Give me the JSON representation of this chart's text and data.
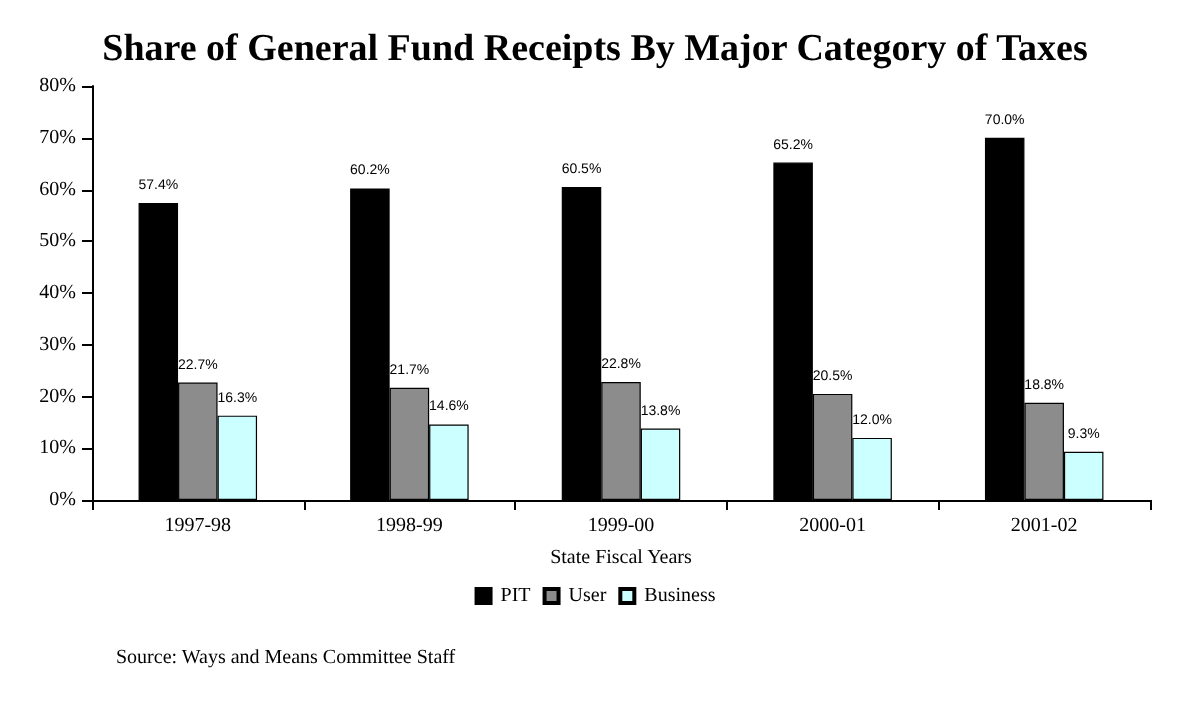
{
  "chart_data": {
    "type": "bar",
    "title": "Share of General Fund Receipts By Major Category of Taxes",
    "xlabel": "State Fiscal Years",
    "categories": [
      "1997-98",
      "1998-99",
      "1999-00",
      "2000-01",
      "2001-02"
    ],
    "series": [
      {
        "name": "PIT",
        "color": "#000000",
        "values": [
          57.4,
          60.2,
          60.5,
          65.2,
          70.0
        ],
        "value_labels": [
          "57.4%",
          "60.2%",
          "60.5%",
          "65.2%",
          "70.0%"
        ]
      },
      {
        "name": "User",
        "color": "#8c8c8c",
        "values": [
          22.7,
          21.7,
          22.8,
          20.5,
          18.8
        ],
        "value_labels": [
          "22.7%",
          "21.7%",
          "22.8%",
          "20.5%",
          "18.8%"
        ]
      },
      {
        "name": "Business",
        "color": "#ccffff",
        "values": [
          16.3,
          14.6,
          13.8,
          12.0,
          9.3
        ],
        "value_labels": [
          "16.3%",
          "14.6%",
          "13.8%",
          "12.0%",
          "9.3%"
        ]
      }
    ],
    "ylim": [
      0,
      80
    ],
    "yticks": [
      {
        "value": 0,
        "label": "0%"
      },
      {
        "value": 10,
        "label": "10%"
      },
      {
        "value": 20,
        "label": "20%"
      },
      {
        "value": 30,
        "label": "30%"
      },
      {
        "value": 40,
        "label": "40%"
      },
      {
        "value": 50,
        "label": "50%"
      },
      {
        "value": 60,
        "label": "60%"
      },
      {
        "value": 70,
        "label": "70%"
      },
      {
        "value": 80,
        "label": "80%"
      }
    ],
    "grid": false,
    "legend": "bottom",
    "annotations": [
      "Source: Ways and Means Committee Staff"
    ]
  }
}
